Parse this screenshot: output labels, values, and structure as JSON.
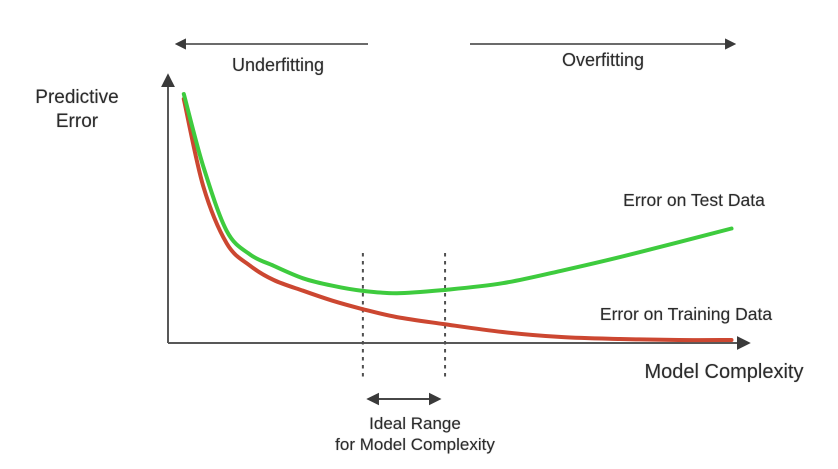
{
  "labels": {
    "y_axis_line1": "Predictive",
    "y_axis_line2": "Error",
    "x_axis": "Model Complexity",
    "underfitting": "Underfitting",
    "overfitting": "Overfitting",
    "test_curve": "Error on Test Data",
    "training_curve": "Error on Training Data",
    "ideal_range_line1": "Ideal Range",
    "ideal_range_line2": "for Model Complexity"
  },
  "colors": {
    "test_curve": "#3ecb3e",
    "training_curve": "#cc4731",
    "axis": "#585858",
    "annotation": "#3a3a3a",
    "text": "#2b2b2b"
  },
  "chart_data": {
    "type": "line",
    "title": "",
    "xlabel": "Model Complexity",
    "ylabel": "Predictive Error",
    "axis_ticks": "none (conceptual, unlabeled axes)",
    "grid": false,
    "legend_position": "inline text labels next to curves",
    "xlim": [
      0,
      10
    ],
    "ylim": [
      0,
      10
    ],
    "x": [
      0.27,
      0.6,
      1.0,
      1.4,
      1.8,
      2.3,
      2.8,
      3.3,
      3.9,
      4.7,
      5.7,
      6.7,
      7.7,
      8.7,
      9.6
    ],
    "series": [
      {
        "name": "Error on Test Data",
        "color": "#3ecb3e",
        "values": [
          10,
          7.1,
          4.5,
          3.55,
          3.1,
          2.6,
          2.3,
          2.1,
          2.0,
          2.13,
          2.4,
          2.9,
          3.45,
          4.05,
          4.6
        ]
      },
      {
        "name": "Error on Training Data",
        "color": "#cc4731",
        "values": [
          9.8,
          6.3,
          4.0,
          3.1,
          2.53,
          2.1,
          1.7,
          1.37,
          1.04,
          0.76,
          0.44,
          0.24,
          0.16,
          0.12,
          0.12
        ]
      }
    ],
    "annotations": {
      "underfitting_region": "left of ideal range (arrow pointing left over x ≈ 0.1–3.3)",
      "overfitting_region": "right of ideal range (arrow pointing right over x ≈ 5.1–9.7)",
      "ideal_range_x": [
        3.32,
        4.72
      ],
      "ideal_range_label": "Ideal Range for Model Complexity",
      "test_error_minimum_x": 3.9
    }
  }
}
